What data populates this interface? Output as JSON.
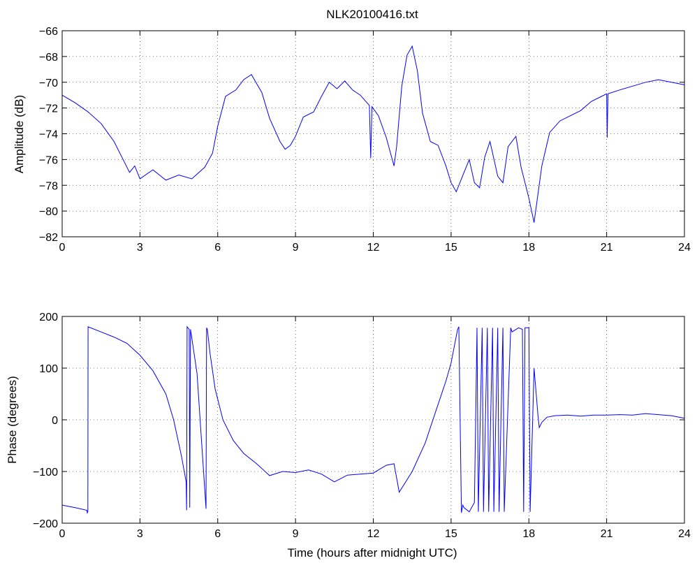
{
  "chart_data": [
    {
      "type": "line",
      "title": "NLK20100416.txt",
      "xlabel": "",
      "ylabel": "Amplitude (dB)",
      "xlim": [
        0,
        24
      ],
      "ylim": [
        -82,
        -66
      ],
      "xticks": [
        0,
        3,
        6,
        9,
        12,
        15,
        18,
        21,
        24
      ],
      "yticks": [
        -82,
        -80,
        -78,
        -76,
        -74,
        -72,
        -70,
        -68,
        -66
      ],
      "grid": true,
      "series": [
        {
          "color": "#0000ff",
          "x": [
            0,
            0.5,
            1.0,
            1.5,
            2.0,
            2.3,
            2.6,
            2.8,
            3.0,
            3.5,
            4.0,
            4.5,
            5.0,
            5.5,
            5.8,
            6.0,
            6.3,
            6.7,
            7.0,
            7.3,
            7.7,
            8.0,
            8.4,
            8.6,
            8.8,
            9.0,
            9.3,
            9.7,
            10.0,
            10.3,
            10.6,
            10.9,
            11.2,
            11.5,
            11.85,
            11.9,
            11.95,
            12.2,
            12.5,
            12.8,
            12.9,
            13.1,
            13.3,
            13.5,
            13.7,
            13.9,
            14.2,
            14.5,
            14.8,
            15.0,
            15.2,
            15.5,
            15.7,
            15.9,
            16.1,
            16.3,
            16.5,
            16.8,
            17.0,
            17.2,
            17.5,
            17.7,
            18.0,
            18.2,
            18.5,
            18.8,
            19.2,
            19.6,
            20.0,
            20.4,
            20.8,
            21.0,
            21.02,
            21.05,
            21.5,
            22.0,
            22.5,
            23.0,
            23.5,
            24.0
          ],
          "y": [
            -71.0,
            -71.6,
            -72.3,
            -73.2,
            -74.6,
            -75.8,
            -77.0,
            -76.5,
            -77.5,
            -76.8,
            -77.6,
            -77.2,
            -77.5,
            -76.6,
            -75.5,
            -73.4,
            -71.1,
            -70.6,
            -69.8,
            -69.4,
            -70.8,
            -72.8,
            -74.6,
            -75.2,
            -74.9,
            -74.2,
            -72.7,
            -72.3,
            -71.1,
            -70.0,
            -70.5,
            -69.9,
            -70.6,
            -71.0,
            -71.8,
            -75.9,
            -71.9,
            -72.6,
            -74.3,
            -76.5,
            -75.0,
            -70.3,
            -67.9,
            -67.2,
            -69.1,
            -72.4,
            -74.6,
            -74.9,
            -76.5,
            -77.8,
            -78.5,
            -77.0,
            -76.0,
            -77.8,
            -78.2,
            -75.8,
            -74.6,
            -77.3,
            -77.8,
            -75.0,
            -74.2,
            -76.6,
            -79.0,
            -80.9,
            -76.5,
            -73.9,
            -73.0,
            -72.6,
            -72.2,
            -71.5,
            -71.1,
            -70.9,
            -74.3,
            -70.9,
            -70.6,
            -70.3,
            -70.0,
            -69.8,
            -70.0,
            -70.2
          ]
        }
      ]
    },
    {
      "type": "line",
      "title": "",
      "xlabel": "Time (hours after midnight UTC)",
      "ylabel": "Phase (degrees)",
      "xlim": [
        0,
        24
      ],
      "ylim": [
        -200,
        200
      ],
      "xticks": [
        0,
        3,
        6,
        9,
        12,
        15,
        18,
        21,
        24
      ],
      "yticks": [
        -200,
        -100,
        0,
        100,
        200
      ],
      "grid": true,
      "series": [
        {
          "color": "#0000ff",
          "x": [
            0,
            0.5,
            0.95,
            0.97,
            0.99,
            1.0,
            1.5,
            2.0,
            2.5,
            3.0,
            3.5,
            4.0,
            4.3,
            4.6,
            4.78,
            4.8,
            4.82,
            4.9,
            4.92,
            4.95,
            5.2,
            5.4,
            5.55,
            5.57,
            5.6,
            5.7,
            5.9,
            6.2,
            6.6,
            7.0,
            7.5,
            8.0,
            8.5,
            9.0,
            9.5,
            10.0,
            10.5,
            11.0,
            11.5,
            12.0,
            12.5,
            12.8,
            13.0,
            13.5,
            14.0,
            14.5,
            14.8,
            15.0,
            15.25,
            15.3,
            15.4,
            15.45,
            15.5,
            15.7,
            15.9,
            16.0,
            16.05,
            16.2,
            16.25,
            16.4,
            16.45,
            16.6,
            16.65,
            16.8,
            16.85,
            17.0,
            17.05,
            17.3,
            17.35,
            17.6,
            17.75,
            17.8,
            17.85,
            18.0,
            18.05,
            18.2,
            18.35,
            18.4,
            18.5,
            18.7,
            19.0,
            19.5,
            20.0,
            20.5,
            21.0,
            21.5,
            22.0,
            22.5,
            23.0,
            23.5,
            24.0
          ],
          "y": [
            -165,
            -170,
            -175,
            -180,
            -178,
            180,
            170,
            160,
            148,
            125,
            95,
            50,
            0,
            -70,
            -120,
            -175,
            180,
            175,
            -170,
            175,
            90,
            -60,
            -172,
            178,
            175,
            130,
            60,
            0,
            -40,
            -65,
            -85,
            -108,
            -100,
            -102,
            -97,
            -105,
            -120,
            -107,
            -105,
            -103,
            -88,
            -85,
            -140,
            -100,
            -45,
            30,
            75,
            110,
            175,
            180,
            -180,
            -165,
            -170,
            -178,
            -160,
            178,
            -178,
            178,
            -178,
            178,
            -178,
            178,
            -178,
            178,
            -178,
            178,
            -178,
            178,
            170,
            178,
            175,
            -178,
            178,
            178,
            -178,
            100,
            10,
            -15,
            -5,
            5,
            8,
            9,
            7,
            9,
            9,
            10,
            9,
            12,
            10,
            8,
            3
          ]
        }
      ]
    }
  ]
}
